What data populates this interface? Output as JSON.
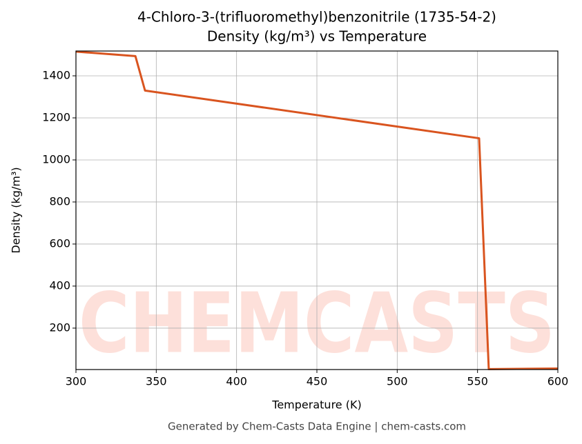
{
  "chart_data": {
    "type": "line",
    "title": "4-Chloro-3-(trifluoromethyl)benzonitrile (1735-54-2)",
    "subtitle": "Density (kg/m³) vs Temperature",
    "x_label": "Temperature (K)",
    "y_label": "Density (kg/m³)",
    "x": [
      300,
      337,
      343,
      551,
      557,
      600
    ],
    "series": [
      {
        "name": "Density",
        "color": "#d9541f",
        "values": [
          1515,
          1494,
          1330,
          1103,
          5,
          8
        ]
      }
    ],
    "xlim": [
      300,
      600
    ],
    "ylim": [
      3,
      1518
    ],
    "xticks": [
      300,
      350,
      400,
      450,
      500,
      550,
      600
    ],
    "yticks": [
      200,
      400,
      600,
      800,
      1000,
      1200,
      1400
    ],
    "grid": true,
    "watermark": "CHEMCASTS",
    "footer": "Generated by Chem-Casts Data Engine | chem-casts.com"
  }
}
